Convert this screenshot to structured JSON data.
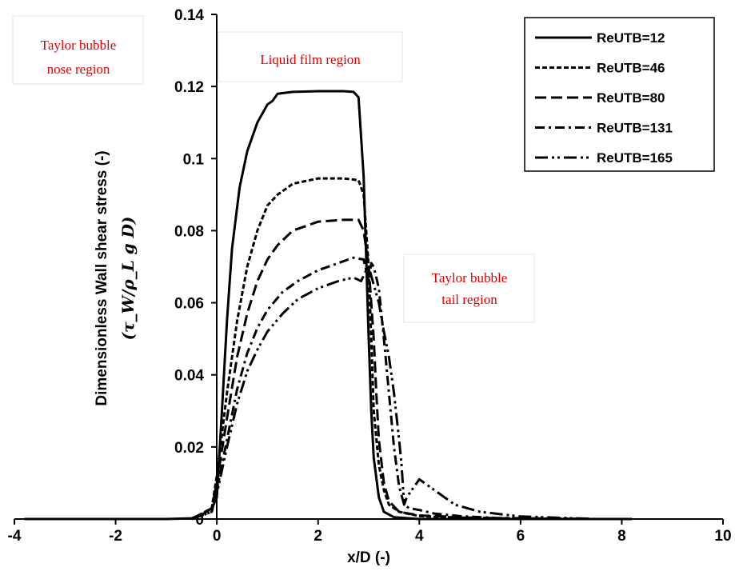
{
  "chart_data": {
    "type": "line",
    "title": "",
    "xlabel": "x/D (-)",
    "ylabel": "Dimensionless Wall shear stress (-)",
    "ylabel_expression": "(τ_W/ρ_L g D)",
    "xlim": [
      -4,
      10
    ],
    "ylim": [
      0,
      0.14
    ],
    "xticks": [
      "-4",
      "-2",
      "0",
      "2",
      "4",
      "6",
      "8",
      "10"
    ],
    "yticks": [
      "0",
      "0.02",
      "0.04",
      "0.06",
      "0.08",
      "0.1",
      "0.12",
      "0.14"
    ],
    "grid": false,
    "legend_position": "top-right",
    "annotations": [
      {
        "lines": [
          "Taylor bubble",
          "nose region"
        ]
      },
      {
        "lines": [
          "Liquid film region"
        ]
      },
      {
        "lines": [
          "Taylor bubble",
          "tail region"
        ]
      }
    ],
    "series": [
      {
        "name": "ReUTB=12",
        "dash": "solid",
        "x": [
          -3.8,
          -2,
          -1,
          -0.5,
          -0.3,
          -0.1,
          0,
          0.1,
          0.2,
          0.3,
          0.45,
          0.6,
          0.8,
          1.0,
          1.1,
          1.2,
          1.5,
          2.0,
          2.5,
          2.7,
          2.8,
          2.9,
          3.0,
          3.05,
          3.1,
          3.2,
          3.3,
          3.5,
          4.0,
          6,
          8,
          8.2
        ],
        "y": [
          0,
          0,
          0,
          0.0002,
          0.0012,
          0.003,
          0.006,
          0.03,
          0.055,
          0.075,
          0.092,
          0.102,
          0.11,
          0.115,
          0.116,
          0.118,
          0.1185,
          0.1187,
          0.1187,
          0.1185,
          0.117,
          0.095,
          0.05,
          0.03,
          0.017,
          0.006,
          0.002,
          0.0005,
          0,
          0,
          0,
          0
        ]
      },
      {
        "name": "ReUTB=46",
        "dash": "short-dash",
        "x": [
          -0.5,
          -0.1,
          0,
          0.2,
          0.4,
          0.6,
          0.8,
          1.0,
          1.2,
          1.5,
          2.0,
          2.5,
          2.8,
          2.9,
          3.0,
          3.05,
          3.1,
          3.2,
          3.3,
          3.4,
          3.6,
          4.0,
          5.0,
          6.0,
          7.5
        ],
        "y": [
          0,
          0.003,
          0.012,
          0.035,
          0.055,
          0.07,
          0.08,
          0.087,
          0.09,
          0.093,
          0.0945,
          0.0945,
          0.094,
          0.09,
          0.07,
          0.05,
          0.03,
          0.015,
          0.008,
          0.004,
          0.002,
          0.0008,
          0.0003,
          0.0001,
          0
        ]
      },
      {
        "name": "ReUTB=80",
        "dash": "long-dash",
        "x": [
          -0.5,
          -0.1,
          0,
          0.2,
          0.4,
          0.6,
          0.8,
          1.0,
          1.2,
          1.5,
          2.0,
          2.5,
          2.8,
          2.9,
          3.0,
          3.1,
          3.15,
          3.2,
          3.3,
          3.4,
          3.6,
          4.0,
          5.0,
          6.0,
          7.5
        ],
        "y": [
          0,
          0.003,
          0.01,
          0.028,
          0.045,
          0.057,
          0.066,
          0.072,
          0.076,
          0.08,
          0.0825,
          0.083,
          0.083,
          0.08,
          0.07,
          0.05,
          0.035,
          0.022,
          0.01,
          0.005,
          0.002,
          0.001,
          0.0004,
          0.0001,
          0
        ]
      },
      {
        "name": "ReUTB=131",
        "dash": "dash-dot",
        "x": [
          -0.5,
          -0.1,
          0,
          0.2,
          0.4,
          0.6,
          0.8,
          1.0,
          1.3,
          1.6,
          2.0,
          2.4,
          2.7,
          2.9,
          3.0,
          3.05,
          3.1,
          3.2,
          3.3,
          3.4,
          3.5,
          3.6,
          3.7,
          3.8,
          4.0,
          4.3,
          4.8,
          5.5,
          7.5
        ],
        "y": [
          0,
          0.002,
          0.008,
          0.022,
          0.036,
          0.046,
          0.053,
          0.058,
          0.063,
          0.066,
          0.069,
          0.071,
          0.0725,
          0.072,
          0.066,
          0.071,
          0.07,
          0.064,
          0.05,
          0.035,
          0.02,
          0.009,
          0.004,
          0.003,
          0.0025,
          0.0015,
          0.0008,
          0.0003,
          0
        ]
      },
      {
        "name": "ReUTB=165",
        "dash": "dash-dot-dot",
        "x": [
          -0.5,
          -0.1,
          0,
          0.2,
          0.4,
          0.6,
          0.8,
          1.0,
          1.3,
          1.6,
          2.0,
          2.4,
          2.7,
          2.85,
          2.95,
          3.0,
          3.1,
          3.2,
          3.3,
          3.4,
          3.5,
          3.6,
          3.65,
          3.7,
          3.75,
          3.85,
          4.0,
          4.3,
          4.7,
          5.2,
          6.0,
          7.5
        ],
        "y": [
          0,
          0.002,
          0.007,
          0.02,
          0.032,
          0.041,
          0.047,
          0.052,
          0.057,
          0.061,
          0.064,
          0.066,
          0.067,
          0.066,
          0.069,
          0.07,
          0.065,
          0.06,
          0.052,
          0.045,
          0.035,
          0.022,
          0.015,
          0.004,
          0.006,
          0.008,
          0.011,
          0.008,
          0.004,
          0.002,
          0.0007,
          0
        ]
      }
    ]
  }
}
